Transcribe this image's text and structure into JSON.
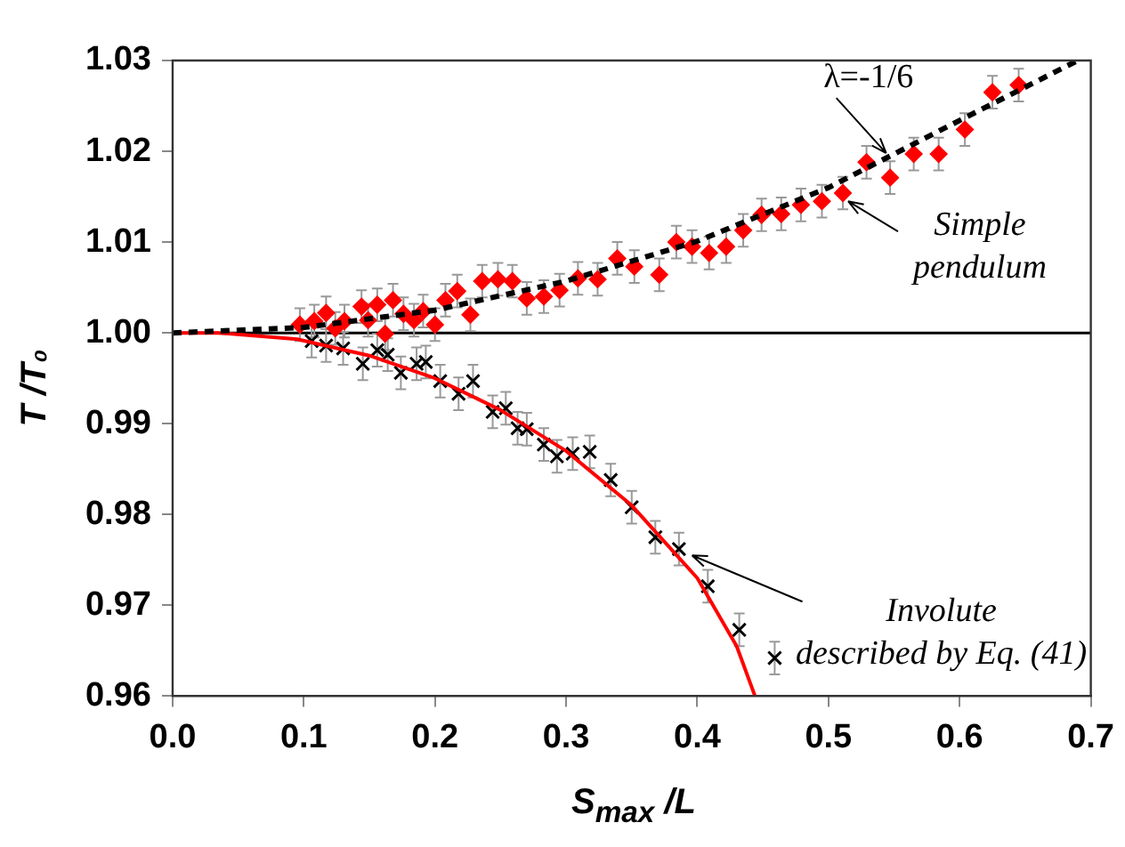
{
  "chart_data": {
    "type": "scatter",
    "xlabel": "S$_{max}$ /L",
    "ylabel": "T /T₀",
    "xlim": [
      0,
      0.7
    ],
    "ylim": [
      0.96,
      1.03
    ],
    "xticks": [
      {
        "value": 0,
        "label": "0.0"
      },
      {
        "value": 0.1,
        "label": "0.1"
      },
      {
        "value": 0.2,
        "label": "0.2"
      },
      {
        "value": 0.3,
        "label": "0.3"
      },
      {
        "value": 0.4,
        "label": "0.4"
      },
      {
        "value": 0.5,
        "label": "0.5"
      },
      {
        "value": 0.6,
        "label": "0.6"
      },
      {
        "value": 0.7,
        "label": "0.7"
      }
    ],
    "yticks": [
      {
        "value": 0.96,
        "label": "0.96"
      },
      {
        "value": 0.97,
        "label": "0.97"
      },
      {
        "value": 0.98,
        "label": "0.98"
      },
      {
        "value": 0.99,
        "label": "0.99"
      },
      {
        "value": 1,
        "label": "1.00"
      },
      {
        "value": 1.01,
        "label": "1.01"
      },
      {
        "value": 1.02,
        "label": "1.02"
      },
      {
        "value": 1.03,
        "label": "1.03"
      }
    ],
    "grid": false,
    "legend": false,
    "series": [
      {
        "type": "line",
        "color": "#000000",
        "marker": "none",
        "line_style": "dashed",
        "x": [
          0,
          0.1,
          0.2,
          0.3,
          0.4,
          0.5,
          0.6,
          0.69
        ],
        "values": [
          1.0,
          1.0006,
          1.0025,
          1.0057,
          1.0101,
          1.016,
          1.0234,
          1.03
        ]
      },
      {
        "type": "line",
        "color": "#ff0000",
        "marker": "none",
        "line_style": "solid",
        "x": [
          0,
          0.035,
          0.095,
          0.15,
          0.2,
          0.25,
          0.3,
          0.35,
          0.4,
          0.43,
          0.444
        ],
        "values": [
          1.0,
          1.0,
          0.9993,
          0.9975,
          0.995,
          0.9915,
          0.987,
          0.981,
          0.973,
          0.9655,
          0.96
        ]
      },
      {
        "color": "#ff0000",
        "marker": "diamond",
        "x": [
          0.097,
          0.108,
          0.117,
          0.124,
          0.131,
          0.144,
          0.149,
          0.156,
          0.162,
          0.168,
          0.176,
          0.184,
          0.191,
          0.2,
          0.208,
          0.217,
          0.227,
          0.236,
          0.248,
          0.259,
          0.27,
          0.283,
          0.295,
          0.309,
          0.324,
          0.339,
          0.352,
          0.371,
          0.384,
          0.396,
          0.409,
          0.422,
          0.435,
          0.449,
          0.464,
          0.479,
          0.495,
          0.511,
          0.529,
          0.547,
          0.565,
          0.584,
          0.604,
          0.625,
          0.645
        ],
        "values": [
          1.0009,
          1.0013,
          1.0022,
          1.0005,
          1.0013,
          1.0029,
          1.0014,
          1.0031,
          0.9999,
          1.0036,
          1.0021,
          1.0014,
          1.0024,
          1.0009,
          1.0036,
          1.0046,
          1.002,
          1.0057,
          1.0059,
          1.0057,
          1.0038,
          1.004,
          1.0047,
          1.006,
          1.0059,
          1.0082,
          1.0073,
          1.0064,
          1.01,
          1.0095,
          1.0088,
          1.0095,
          1.0113,
          1.013,
          1.0131,
          1.0141,
          1.0145,
          1.0154,
          1.0188,
          1.0171,
          1.0197,
          1.0197,
          1.0224,
          1.0265,
          1.0273
        ],
        "errors": [
          0.0018,
          0.0018,
          0.0018,
          0.0018,
          0.0018,
          0.0018,
          0.0018,
          0.0018,
          0.0018,
          0.0018,
          0.0018,
          0.0018,
          0.0018,
          0.0018,
          0.0018,
          0.0018,
          0.0018,
          0.0018,
          0.0018,
          0.0018,
          0.0018,
          0.0018,
          0.0018,
          0.0018,
          0.0018,
          0.0018,
          0.0018,
          0.0018,
          0.0018,
          0.0018,
          0.0018,
          0.0018,
          0.0018,
          0.0018,
          0.0018,
          0.0018,
          0.0018,
          0.0018,
          0.0018,
          0.0018,
          0.0018,
          0.0018,
          0.0018,
          0.0018,
          0.0018
        ]
      },
      {
        "color": "#000000",
        "marker": "cross",
        "x": [
          0.106,
          0.117,
          0.13,
          0.145,
          0.156,
          0.164,
          0.174,
          0.186,
          0.193,
          0.204,
          0.218,
          0.229,
          0.244,
          0.254,
          0.263,
          0.27,
          0.283,
          0.293,
          0.305,
          0.318,
          0.334,
          0.35,
          0.368,
          0.386,
          0.408,
          0.432,
          0.459
        ],
        "values": [
          0.9991,
          0.9986,
          0.9983,
          0.9966,
          0.9981,
          0.9976,
          0.9956,
          0.9966,
          0.9968,
          0.9947,
          0.9933,
          0.9947,
          0.9913,
          0.9917,
          0.9895,
          0.9894,
          0.9877,
          0.9864,
          0.9867,
          0.9869,
          0.9838,
          0.9808,
          0.9775,
          0.9762,
          0.9721,
          0.9673,
          0.9642
        ],
        "errors": [
          0.0018,
          0.0018,
          0.0018,
          0.0018,
          0.0018,
          0.0018,
          0.0018,
          0.0018,
          0.0018,
          0.0018,
          0.0018,
          0.0018,
          0.0018,
          0.0018,
          0.0018,
          0.0018,
          0.0018,
          0.0018,
          0.0018,
          0.0018,
          0.0018,
          0.0018,
          0.0018,
          0.0018,
          0.0018,
          0.0018,
          0.0018
        ]
      }
    ],
    "ref_lines": [
      {
        "axis": "y",
        "value": 1,
        "color": "#000000",
        "line_style": "solid"
      }
    ],
    "annotations": [
      {
        "text": "λ=-1/6",
        "x": 0.544,
        "y": 1.0198
      },
      {
        "text": "Simple pendulum",
        "x": 0.515,
        "y": 1.0145
      },
      {
        "text": "Involute described by Eq. (41)",
        "x": 0.396,
        "y": 0.9755
      }
    ]
  }
}
